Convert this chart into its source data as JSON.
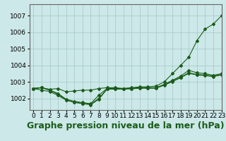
{
  "background_color": "#cce8e8",
  "grid_color": "#aacccc",
  "line_color": "#1a5c1a",
  "marker_color": "#1a5c1a",
  "title": "Graphe pression niveau de la mer (hPa)",
  "xlim": [
    -0.5,
    23
  ],
  "ylim": [
    1001.3,
    1007.7
  ],
  "yticks": [
    1002,
    1003,
    1004,
    1005,
    1006,
    1007
  ],
  "xticks": [
    0,
    1,
    2,
    3,
    4,
    5,
    6,
    7,
    8,
    9,
    10,
    11,
    12,
    13,
    14,
    15,
    16,
    17,
    18,
    19,
    20,
    21,
    22,
    23
  ],
  "series": [
    [
      1002.6,
      1002.65,
      1002.55,
      1002.6,
      1002.4,
      1002.45,
      1002.5,
      1002.5,
      1002.6,
      1002.65,
      1002.65,
      1002.6,
      1002.65,
      1002.7,
      1002.7,
      1002.75,
      1003.0,
      1003.5,
      1004.0,
      1004.5,
      1005.5,
      1006.2,
      1006.5,
      1007.0
    ],
    [
      1002.6,
      1002.65,
      1002.5,
      1002.3,
      1001.95,
      1001.82,
      1001.75,
      1001.68,
      1002.2,
      1002.6,
      1002.6,
      1002.6,
      1002.62,
      1002.65,
      1002.65,
      1002.65,
      1002.85,
      1003.1,
      1003.35,
      1003.7,
      1003.55,
      1003.5,
      1003.4,
      1003.5
    ],
    [
      1002.6,
      1002.65,
      1002.5,
      1002.25,
      1001.9,
      1001.78,
      1001.7,
      1001.65,
      1002.0,
      1002.58,
      1002.58,
      1002.58,
      1002.6,
      1002.63,
      1002.63,
      1002.63,
      1002.82,
      1003.05,
      1003.28,
      1003.55,
      1003.45,
      1003.42,
      1003.35,
      1003.45
    ],
    [
      1002.6,
      1002.5,
      1002.42,
      1002.18,
      1001.9,
      1001.76,
      1001.68,
      1001.62,
      1001.95,
      1002.56,
      1002.56,
      1002.56,
      1002.58,
      1002.62,
      1002.62,
      1002.62,
      1002.8,
      1003.02,
      1003.25,
      1003.52,
      1003.42,
      1003.38,
      1003.32,
      1003.42
    ]
  ],
  "title_fontsize": 9,
  "tick_fontsize": 6.5
}
